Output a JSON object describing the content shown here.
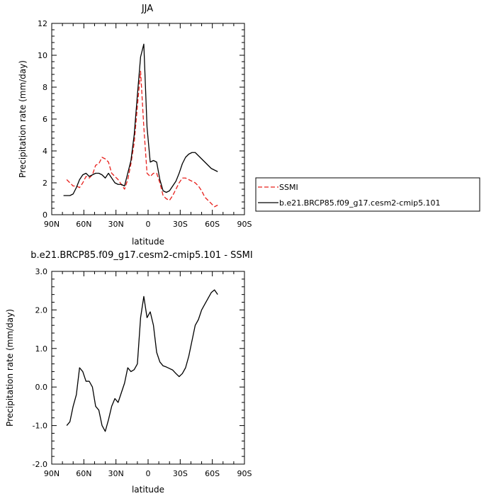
{
  "chart_data": [
    {
      "type": "line",
      "title": "JJA",
      "xlabel": "latitude",
      "ylabel": "Precipitation rate (mm/day)",
      "xlim": [
        90,
        -90
      ],
      "ylim": [
        0,
        12
      ],
      "x_ticks": [
        90,
        60,
        30,
        0,
        -30,
        -60,
        -90
      ],
      "x_tick_labels": [
        "90N",
        "60N",
        "30N",
        "0",
        "30S",
        "60S",
        "90S"
      ],
      "y_ticks": [
        0,
        2,
        4,
        6,
        8,
        10,
        12
      ],
      "y_tick_labels": [
        "0",
        "2",
        "4",
        "6",
        "8",
        "10",
        "12"
      ],
      "legend_position": "right",
      "series": [
        {
          "name": "SSMI",
          "color": "#e8201c",
          "dash": "dashed",
          "x": [
            76,
            73,
            70,
            67,
            64,
            61,
            58,
            55,
            52,
            49,
            46,
            43,
            40,
            37,
            34,
            31,
            28,
            25,
            22,
            19,
            16,
            13,
            10,
            7,
            4,
            1,
            -2,
            -5,
            -8,
            -11,
            -14,
            -17,
            -20,
            -23,
            -26,
            -29,
            -32,
            -35,
            -38,
            -41,
            -44,
            -47,
            -50,
            -53,
            -56,
            -59,
            -62,
            -65
          ],
          "y": [
            2.2,
            2.0,
            1.8,
            1.8,
            1.7,
            2.0,
            2.4,
            2.3,
            2.5,
            3.1,
            3.2,
            3.6,
            3.5,
            3.3,
            2.6,
            2.4,
            2.2,
            1.9,
            1.6,
            2.2,
            3.2,
            4.5,
            6.8,
            9.0,
            5.5,
            2.6,
            2.4,
            2.6,
            2.6,
            2.0,
            1.2,
            1.0,
            0.9,
            1.2,
            1.6,
            2.0,
            2.3,
            2.3,
            2.2,
            2.1,
            2.0,
            1.8,
            1.5,
            1.1,
            0.9,
            0.7,
            0.5,
            0.6
          ]
        },
        {
          "name": "b.e21.BRCP85.f09_g17.cesm2-cmip5.101",
          "color": "#000000",
          "dash": "solid",
          "x": [
            79,
            76,
            73,
            70,
            67,
            64,
            61,
            58,
            55,
            52,
            49,
            46,
            43,
            40,
            37,
            34,
            31,
            28,
            25,
            22,
            19,
            16,
            13,
            10,
            7,
            4,
            1,
            -2,
            -5,
            -8,
            -11,
            -14,
            -17,
            -20,
            -23,
            -26,
            -29,
            -32,
            -35,
            -38,
            -41,
            -44,
            -47,
            -50,
            -53,
            -56,
            -59,
            -62,
            -65
          ],
          "y": [
            1.2,
            1.2,
            1.2,
            1.3,
            1.7,
            2.2,
            2.5,
            2.6,
            2.4,
            2.5,
            2.6,
            2.6,
            2.5,
            2.3,
            2.6,
            2.3,
            2.0,
            1.9,
            1.9,
            1.8,
            2.6,
            3.4,
            5.0,
            7.5,
            9.9,
            10.7,
            5.5,
            3.3,
            3.4,
            3.3,
            2.2,
            1.5,
            1.4,
            1.5,
            1.8,
            2.1,
            2.6,
            3.2,
            3.6,
            3.8,
            3.9,
            3.9,
            3.7,
            3.5,
            3.3,
            3.1,
            2.9,
            2.8,
            2.7
          ]
        }
      ]
    },
    {
      "type": "line",
      "title": "b.e21.BRCP85.f09_g17.cesm2-cmip5.101 - SSMI",
      "xlabel": "latitude",
      "ylabel": "Precipitation rate (mm/day)",
      "xlim": [
        90,
        -90
      ],
      "ylim": [
        -2,
        3
      ],
      "x_ticks": [
        90,
        60,
        30,
        0,
        -30,
        -60,
        -90
      ],
      "x_tick_labels": [
        "90N",
        "60N",
        "30N",
        "0",
        "30S",
        "60S",
        "90S"
      ],
      "y_ticks": [
        -2,
        -1,
        0,
        1,
        2,
        3
      ],
      "y_tick_labels": [
        "-2.0",
        "-1.0",
        "0.0",
        "1.0",
        "2.0",
        "3.0"
      ],
      "series": [
        {
          "color": "#000000",
          "dash": "solid",
          "x": [
            76,
            73,
            70,
            67,
            64,
            61,
            58,
            55,
            52,
            49,
            46,
            43,
            40,
            37,
            34,
            31,
            28,
            25,
            22,
            19,
            16,
            13,
            10,
            7,
            4,
            1,
            -2,
            -5,
            -8,
            -11,
            -14,
            -17,
            -20,
            -23,
            -26,
            -29,
            -32,
            -35,
            -38,
            -41,
            -44,
            -47,
            -50,
            -53,
            -56,
            -59,
            -62,
            -65
          ],
          "y": [
            -1.0,
            -0.9,
            -0.5,
            -0.2,
            0.5,
            0.4,
            0.15,
            0.15,
            0.0,
            -0.5,
            -0.6,
            -1.0,
            -1.15,
            -0.85,
            -0.5,
            -0.3,
            -0.4,
            -0.15,
            0.1,
            0.5,
            0.4,
            0.45,
            0.6,
            1.8,
            2.35,
            1.8,
            1.95,
            1.6,
            0.9,
            0.65,
            0.55,
            0.52,
            0.48,
            0.44,
            0.35,
            0.27,
            0.35,
            0.5,
            0.8,
            1.2,
            1.6,
            1.75,
            2.0,
            2.15,
            2.3,
            2.45,
            2.52,
            2.4
          ]
        }
      ]
    }
  ]
}
